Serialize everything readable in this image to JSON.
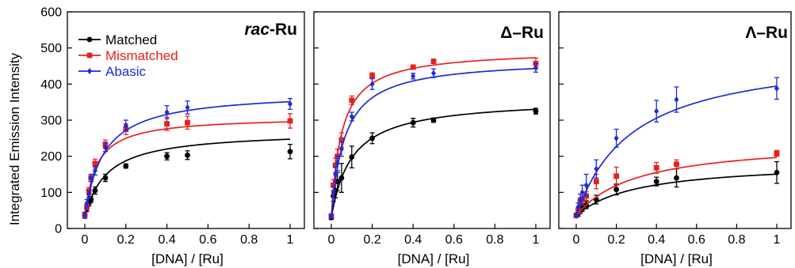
{
  "chart_data": [
    {
      "type": "scatter",
      "title": "rac-Ru",
      "title_prefix": "rac",
      "title_suffix": "-Ru",
      "xlabel": "[DNA] / [Ru]",
      "ylabel": "Integrated Emission Intensity",
      "xlim": [
        0,
        1
      ],
      "ylim": [
        0,
        600
      ],
      "xticks": [
        "0",
        "0.2",
        "0.4",
        "0.6",
        "0.8",
        "1"
      ],
      "yticks": [
        "0",
        "100",
        "200",
        "300",
        "400",
        "500",
        "600"
      ],
      "legend": "top-left",
      "series": [
        {
          "name": "Matched",
          "color": "#000000",
          "marker": "circle",
          "x": [
            0,
            0.01,
            0.02,
            0.03,
            0.05,
            0.1,
            0.2,
            0.4,
            0.5,
            1
          ],
          "y": [
            35,
            55,
            70,
            80,
            105,
            140,
            173,
            200,
            203,
            213
          ],
          "err": [
            5,
            8,
            8,
            8,
            10,
            10,
            6,
            10,
            12,
            20
          ],
          "fit": {
            "a": 240,
            "b": 0.105,
            "c": 30
          }
        },
        {
          "name": "Mismatched",
          "color": "#e8201c",
          "marker": "square",
          "x": [
            0,
            0.01,
            0.02,
            0.03,
            0.05,
            0.1,
            0.2,
            0.4,
            0.5,
            1
          ],
          "y": [
            37,
            60,
            103,
            140,
            180,
            233,
            275,
            290,
            293,
            298
          ],
          "err": [
            8,
            8,
            10,
            10,
            12,
            12,
            15,
            18,
            18,
            20
          ],
          "fit": {
            "a": 280,
            "b": 0.055,
            "c": 30
          }
        },
        {
          "name": "Abasic",
          "color": "#1d2bd6",
          "marker": "diamond",
          "x": [
            0,
            0.01,
            0.02,
            0.03,
            0.05,
            0.1,
            0.2,
            0.4,
            0.5,
            1
          ],
          "y": [
            36,
            70,
            95,
            140,
            160,
            225,
            285,
            322,
            335,
            345
          ],
          "err": [
            8,
            10,
            10,
            10,
            12,
            12,
            15,
            18,
            18,
            15
          ],
          "fit": {
            "a": 350,
            "b": 0.09,
            "c": 30
          }
        }
      ]
    },
    {
      "type": "scatter",
      "title": "Δ–Ru",
      "xlabel": "[DNA] / [Ru]",
      "xlim": [
        0,
        1
      ],
      "ylim": [
        0,
        600
      ],
      "xticks": [
        "0",
        "0.2",
        "0.4",
        "0.6",
        "0.8",
        "1"
      ],
      "series": [
        {
          "name": "Matched",
          "color": "#000000",
          "marker": "circle",
          "x": [
            0,
            0.01,
            0.02,
            0.03,
            0.05,
            0.1,
            0.2,
            0.4,
            0.5,
            1
          ],
          "y": [
            30,
            90,
            105,
            130,
            140,
            198,
            250,
            293,
            300,
            325
          ],
          "err": [
            5,
            15,
            20,
            25,
            40,
            30,
            15,
            12,
            6,
            8
          ],
          "fit": {
            "a": 330,
            "b": 0.1,
            "c": 30
          }
        },
        {
          "name": "Mismatched",
          "color": "#e8201c",
          "marker": "square",
          "x": [
            0,
            0.01,
            0.02,
            0.03,
            0.05,
            0.1,
            0.2,
            0.4,
            0.5,
            1
          ],
          "y": [
            35,
            120,
            175,
            200,
            245,
            355,
            423,
            447,
            463,
            457
          ],
          "err": [
            5,
            15,
            20,
            20,
            20,
            12,
            8,
            6,
            6,
            15
          ],
          "fit": {
            "a": 465,
            "b": 0.05,
            "c": 30
          }
        },
        {
          "name": "Abasic",
          "color": "#1d2bd6",
          "marker": "diamond",
          "x": [
            0,
            0.01,
            0.02,
            0.03,
            0.05,
            0.1,
            0.2,
            0.4,
            0.5,
            1
          ],
          "y": [
            33,
            100,
            150,
            180,
            220,
            310,
            400,
            422,
            430,
            445
          ],
          "err": [
            5,
            15,
            20,
            20,
            20,
            12,
            15,
            8,
            12,
            12
          ],
          "fit": {
            "a": 440,
            "b": 0.065,
            "c": 30
          }
        }
      ]
    },
    {
      "type": "scatter",
      "title": "Λ–Ru",
      "xlabel": "[DNA] / [Ru]",
      "xlim": [
        0,
        1
      ],
      "ylim": [
        0,
        600
      ],
      "xticks": [
        "0",
        "0.2",
        "0.4",
        "0.6",
        "0.8",
        "1"
      ],
      "series": [
        {
          "name": "Matched",
          "color": "#000000",
          "marker": "circle",
          "x": [
            0,
            0.01,
            0.02,
            0.03,
            0.05,
            0.1,
            0.2,
            0.4,
            0.5,
            1
          ],
          "y": [
            35,
            42,
            50,
            57,
            65,
            80,
            108,
            130,
            140,
            155
          ],
          "err": [
            5,
            8,
            8,
            10,
            10,
            12,
            15,
            12,
            25,
            30
          ],
          "fit": {
            "a": 150,
            "b": 0.3,
            "c": 35
          }
        },
        {
          "name": "Mismatched",
          "color": "#e8201c",
          "marker": "square",
          "x": [
            0,
            0.01,
            0.02,
            0.03,
            0.05,
            0.1,
            0.2,
            0.4,
            0.5,
            1
          ],
          "y": [
            36,
            50,
            75,
            80,
            90,
            130,
            145,
            168,
            178,
            208
          ],
          "err": [
            5,
            8,
            10,
            10,
            12,
            20,
            25,
            15,
            12,
            8
          ],
          "fit": {
            "a": 210,
            "b": 0.3,
            "c": 35
          }
        },
        {
          "name": "Abasic",
          "color": "#1d2bd6",
          "marker": "diamond",
          "x": [
            0,
            0.01,
            0.02,
            0.03,
            0.05,
            0.1,
            0.2,
            0.4,
            0.5,
            1
          ],
          "y": [
            37,
            60,
            80,
            100,
            120,
            165,
            250,
            325,
            357,
            388
          ],
          "err": [
            5,
            10,
            15,
            20,
            30,
            25,
            25,
            30,
            35,
            30
          ],
          "fit": {
            "a": 460,
            "b": 0.28,
            "c": 35
          }
        }
      ]
    }
  ]
}
